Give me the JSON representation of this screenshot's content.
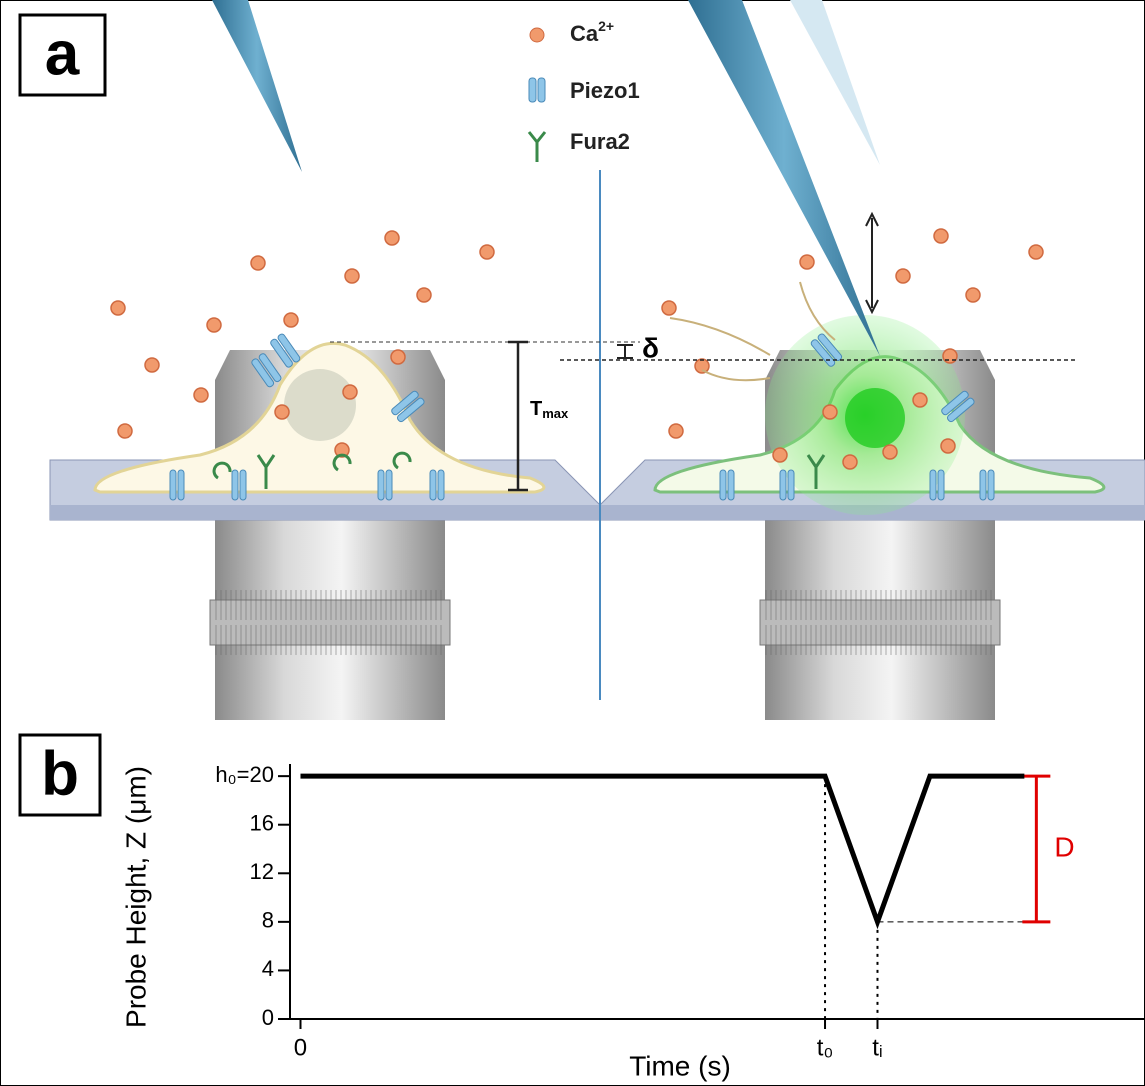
{
  "panel_a": {
    "label": "a",
    "legend": [
      {
        "label": "Ca",
        "sup": "2+"
      },
      {
        "label": "Piezo1"
      },
      {
        "label": "Fura2"
      }
    ],
    "delta": "δ",
    "tmax": {
      "text": "T",
      "sub": "max"
    }
  },
  "chart_data": {
    "type": "line",
    "panel_label": "b",
    "x_label": "Time (s)",
    "y_label": "Probe Height, Z (μm)",
    "x": [
      0,
      10,
      11,
      12,
      13.8
    ],
    "series": [
      {
        "color": "#000000",
        "values": [
          20,
          20,
          8,
          20,
          20
        ]
      }
    ],
    "xlim": [
      -0.2,
      16.1
    ],
    "ylim": [
      0,
      21
    ],
    "xticks": [
      0,
      {
        "value": 10,
        "label": "t₀"
      },
      {
        "value": 11,
        "label": "tᵢ"
      }
    ],
    "yticks": [
      0,
      4,
      8,
      12,
      16,
      {
        "value": 20,
        "label": "h₀=20"
      }
    ],
    "annotations": [
      {
        "text": "D",
        "color": "#e00000"
      }
    ]
  }
}
